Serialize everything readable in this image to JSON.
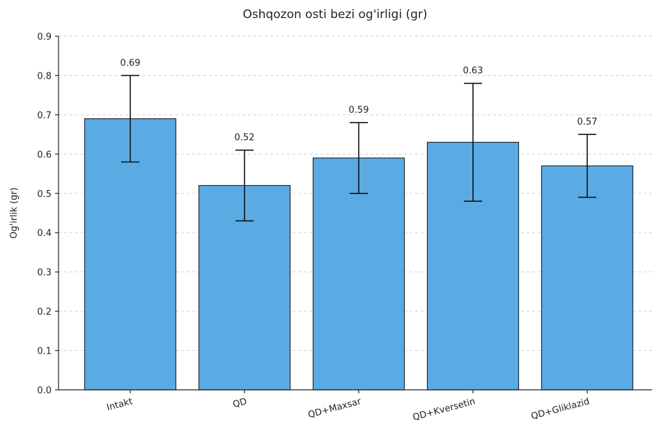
{
  "chart_data": {
    "type": "bar",
    "title": "Oshqozon osti bezi og'irligi (gr)",
    "xlabel": "",
    "ylabel": "Og'irlik (gr)",
    "ylim": [
      0,
      0.9
    ],
    "yticks": [
      0.0,
      0.1,
      0.2,
      0.3,
      0.4,
      0.5,
      0.6,
      0.7,
      0.8,
      0.9
    ],
    "ytick_labels": [
      "0.0",
      "0.1",
      "0.2",
      "0.3",
      "0.4",
      "0.5",
      "0.6",
      "0.7",
      "0.8",
      "0.9"
    ],
    "categories": [
      "Intakt",
      "QD",
      "QD+Maxsar",
      "QD+Kversetin",
      "QD+Gliklazid"
    ],
    "values": [
      0.69,
      0.52,
      0.59,
      0.63,
      0.57
    ],
    "errors": [
      0.11,
      0.09,
      0.09,
      0.15,
      0.08
    ],
    "data_labels": [
      "0.69",
      "0.52",
      "0.59",
      "0.63",
      "0.57"
    ],
    "bar_color": "#5aabe3",
    "grid": true,
    "grid_axis": "y"
  }
}
